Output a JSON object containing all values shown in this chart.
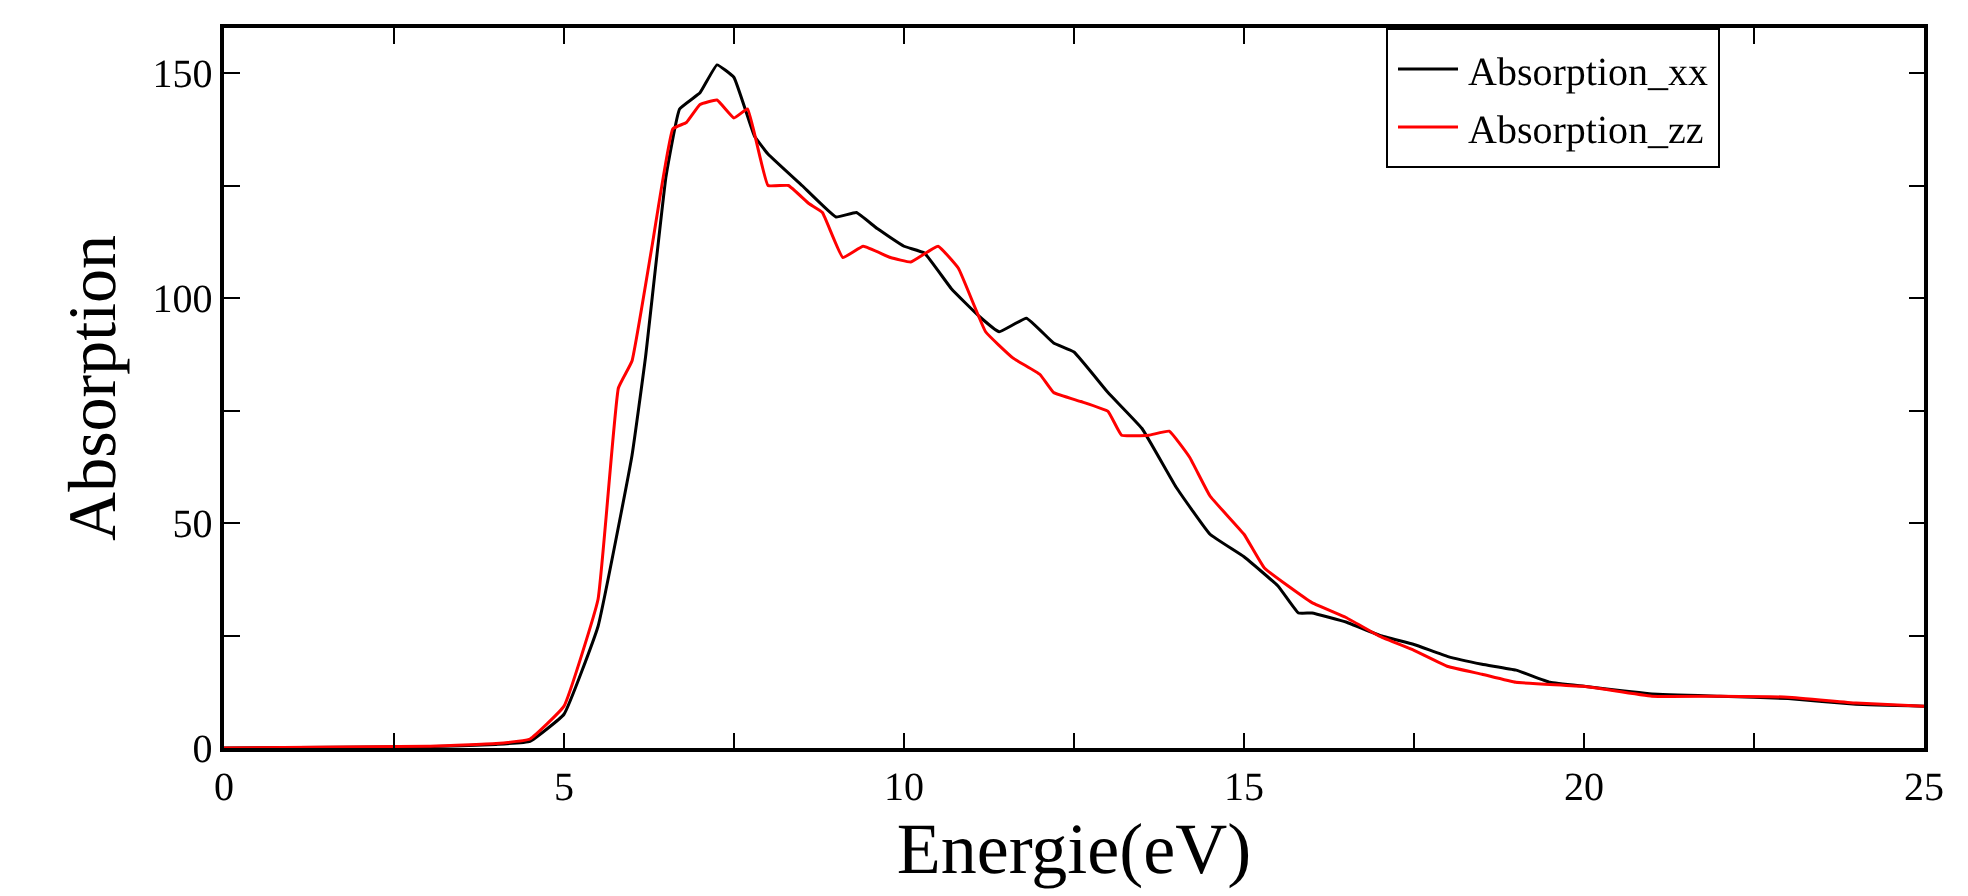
{
  "chart_data": {
    "type": "line",
    "xlabel": "Energie(eV)",
    "ylabel": "Absorption",
    "xlim": [
      0,
      25
    ],
    "ylim": [
      0,
      160
    ],
    "xticks": [
      0,
      {
        "value": 2.5,
        "label": null
      },
      5,
      {
        "value": 7.5,
        "label": null
      },
      10,
      {
        "value": 12.5,
        "label": null
      },
      15,
      {
        "value": 17.5,
        "label": null
      },
      20,
      {
        "value": 22.5,
        "label": null
      },
      25
    ],
    "yticks": [
      0,
      {
        "value": 25,
        "label": null
      },
      50,
      {
        "value": 75,
        "label": null
      },
      100,
      {
        "value": 125,
        "label": null
      },
      150
    ],
    "legend": "top right",
    "marker": "none",
    "line_style": "solid",
    "series": [
      {
        "name": "Absorption_xx",
        "color": "#000000",
        "x": [
          0,
          3,
          4,
          4.5,
          5,
          5.5,
          6,
          6.2,
          6.5,
          6.7,
          7,
          7.25,
          7.5,
          7.8,
          8,
          8.5,
          9,
          9.3,
          9.6,
          10,
          10.3,
          10.7,
          11.1,
          11.4,
          11.8,
          12.2,
          12.5,
          13,
          13.5,
          14,
          14.5,
          15,
          15.5,
          15.8,
          16,
          16.5,
          17,
          17.5,
          18,
          18.5,
          19,
          19.5,
          20,
          21,
          22,
          23,
          24,
          25
        ],
        "values": [
          0,
          0.3,
          0.8,
          1.5,
          7.5,
          27,
          65,
          87,
          127,
          142,
          145.6,
          151.8,
          149,
          136,
          132,
          125,
          118,
          119,
          115.5,
          111.5,
          110,
          102,
          96,
          92.5,
          95.5,
          90,
          88,
          79,
          71,
          58,
          47.5,
          42.5,
          36,
          30,
          30,
          28,
          25,
          23,
          20.3,
          18.6,
          17.3,
          14.6,
          13.7,
          12,
          11.5,
          11,
          9.7,
          9.3
        ]
      },
      {
        "name": "Absorption_zz",
        "color": "#ff0000",
        "x": [
          0,
          3,
          4,
          4.5,
          5,
          5.5,
          5.8,
          6,
          6.3,
          6.6,
          6.8,
          7,
          7.25,
          7.5,
          7.7,
          8,
          8.3,
          8.6,
          8.8,
          9.1,
          9.4,
          9.8,
          10.1,
          10.5,
          10.8,
          11.2,
          11.6,
          12,
          12.2,
          12.6,
          13,
          13.2,
          13.6,
          13.9,
          14.2,
          14.5,
          15,
          15.3,
          16,
          16.5,
          17,
          17.5,
          18,
          18.5,
          19,
          20,
          21,
          22,
          23,
          24,
          25
        ],
        "values": [
          0,
          0.4,
          1,
          2,
          9.3,
          33,
          80,
          86,
          112,
          137.6,
          139,
          143,
          144,
          140,
          142,
          125,
          125,
          121,
          119,
          109,
          111.5,
          109,
          108,
          111.5,
          106.6,
          92.5,
          86.7,
          83,
          79,
          77,
          74.8,
          69.5,
          69.5,
          70.4,
          64.6,
          56,
          47.5,
          40,
          32.3,
          29,
          24.8,
          21.7,
          18.1,
          16.4,
          14.6,
          13.7,
          11.5,
          11.5,
          11.3,
          10,
          9.3
        ]
      }
    ]
  }
}
